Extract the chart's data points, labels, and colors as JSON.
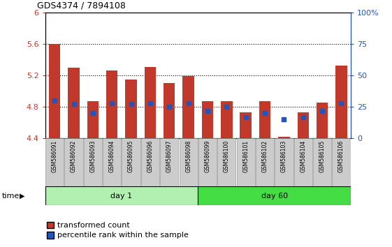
{
  "title": "GDS4374 / 7894108",
  "samples": [
    "GSM586091",
    "GSM586092",
    "GSM586093",
    "GSM586094",
    "GSM586095",
    "GSM586096",
    "GSM586097",
    "GSM586098",
    "GSM586099",
    "GSM586100",
    "GSM586101",
    "GSM586102",
    "GSM586103",
    "GSM586104",
    "GSM586105",
    "GSM586106"
  ],
  "bar_values": [
    5.6,
    5.3,
    4.87,
    5.26,
    5.15,
    5.31,
    5.1,
    5.19,
    4.87,
    4.87,
    4.73,
    4.87,
    4.42,
    4.73,
    4.85,
    5.32
  ],
  "bar_bottom": 4.4,
  "percentile_values": [
    30,
    27,
    20,
    28,
    27,
    28,
    25,
    28,
    22,
    25,
    17,
    20,
    15,
    17,
    22,
    28
  ],
  "ylim_left": [
    4.4,
    6.0
  ],
  "ylim_right": [
    0,
    100
  ],
  "yticks_left": [
    4.4,
    4.8,
    5.2,
    5.6,
    6.0
  ],
  "yticks_right": [
    0,
    25,
    50,
    75,
    100
  ],
  "ytick_labels_left": [
    "4.4",
    "4.8",
    "5.2",
    "5.6",
    "6"
  ],
  "ytick_labels_right": [
    "0",
    "25",
    "50",
    "75",
    "100%"
  ],
  "bar_color": "#c0392b",
  "percentile_color": "#2255bb",
  "group1_label": "day 1",
  "group2_label": "day 60",
  "group1_count": 8,
  "group2_count": 8,
  "group1_bg": "#b2f0b2",
  "group2_bg": "#44dd44",
  "tick_bg": "#cccccc",
  "legend_red_label": "transformed count",
  "legend_blue_label": "percentile rank within the sample",
  "dotted_gridlines": [
    4.8,
    5.2,
    5.6
  ],
  "bar_width": 0.6
}
